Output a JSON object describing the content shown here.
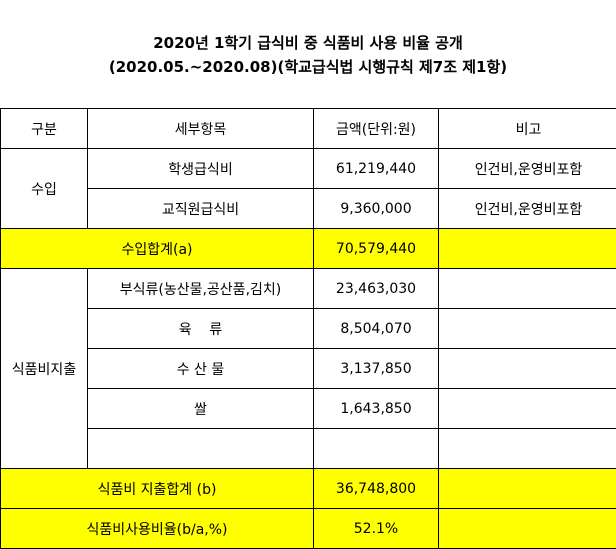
{
  "title": {
    "line1": "2020년 1학기 급식비 중 식품비 사용 비율 공개",
    "line2": "(2020.05.~2020.08)(학교급식법 시행규칙 제7조 제1항)"
  },
  "headers": [
    "구분",
    "세부항목",
    "금액(단위:원)",
    "비고"
  ],
  "income": {
    "category": "수입",
    "rows": [
      {
        "item": "학생급식비",
        "amount": "61,219,440",
        "note": "인건비,운영비포함"
      },
      {
        "item": "교직원급식비",
        "amount": "9,360,000",
        "note": "인건비,운영비포함"
      }
    ],
    "total_label": "수입합계(a)",
    "total_amount": "70,579,440"
  },
  "expense": {
    "category": "식품비지출",
    "rows": [
      {
        "item": "부식류(농산물,공산품,김치)",
        "amount": "23,463,030"
      },
      {
        "item": "육    류",
        "amount": "8,504,070"
      },
      {
        "item": "수 산 물",
        "amount": "3,137,850"
      },
      {
        "item": "쌀",
        "amount": "1,643,850"
      },
      {
        "item": "",
        "amount": ""
      }
    ],
    "total_label": "식품비 지출합계 (b)",
    "total_amount": "36,748,800"
  },
  "ratio": {
    "label": "식품비사용비율(b/a,%)",
    "value": "52.1%"
  },
  "colors": {
    "highlight": "#ffff00"
  }
}
